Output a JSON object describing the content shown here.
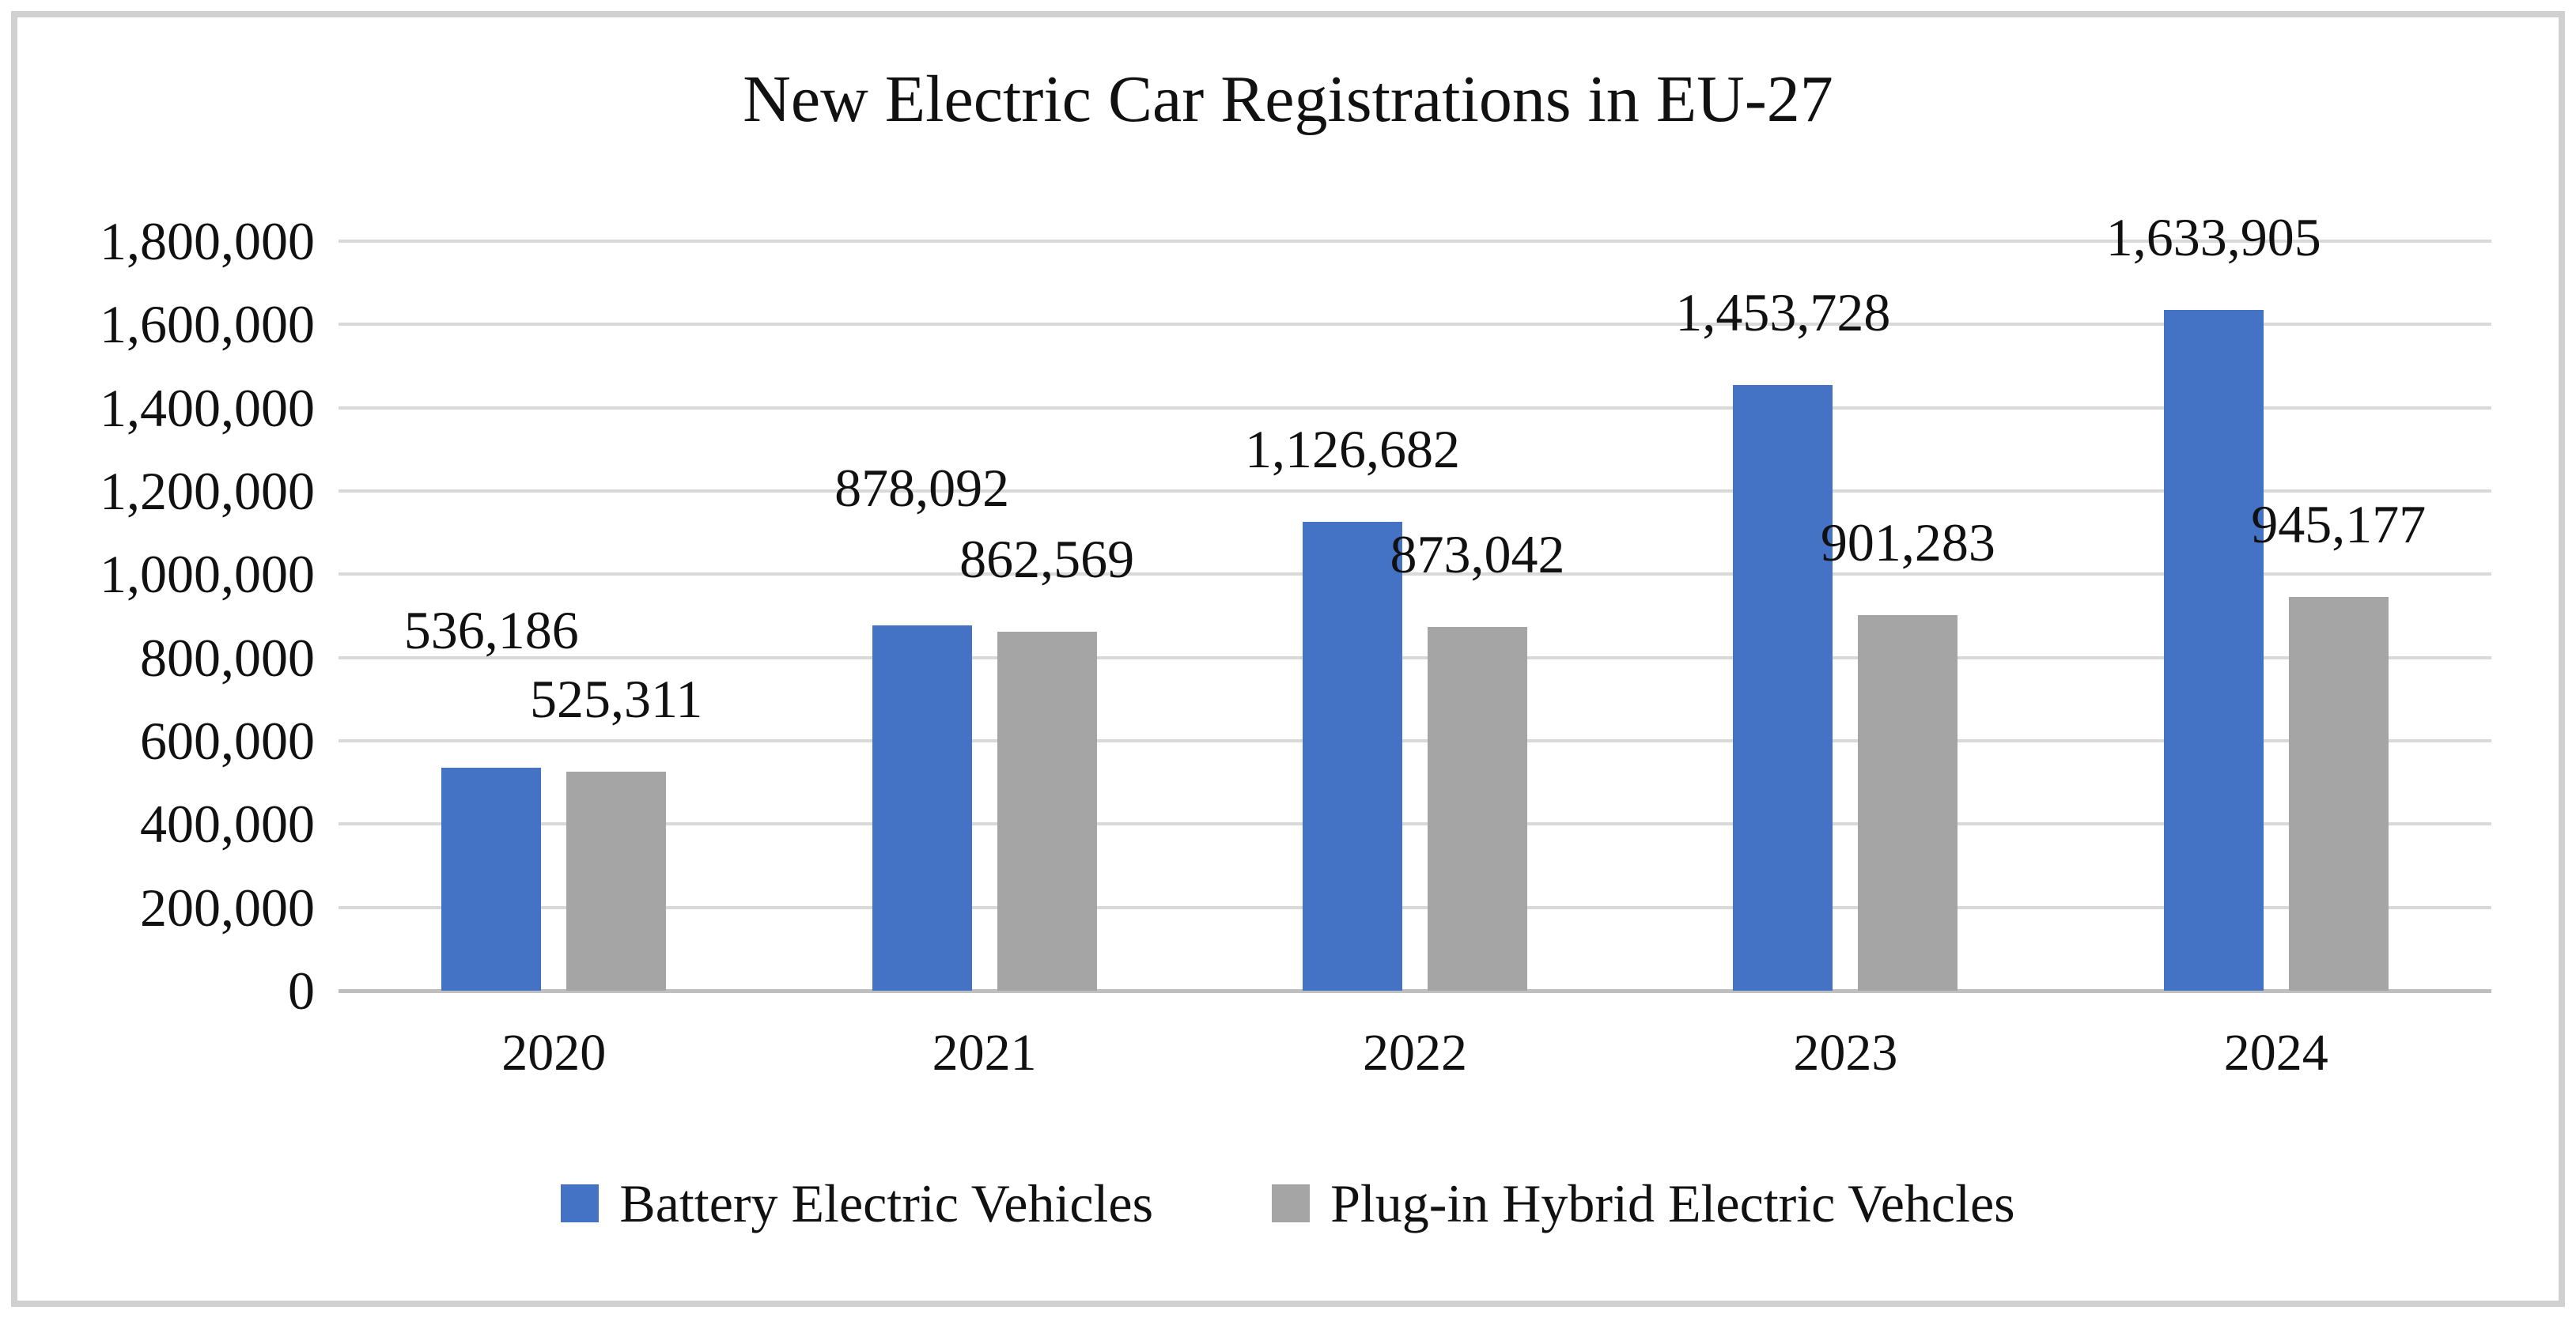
{
  "chart_data": {
    "type": "bar",
    "title": "New Electric Car Registrations in EU-27",
    "categories": [
      "2020",
      "2021",
      "2022",
      "2023",
      "2024"
    ],
    "series": [
      {
        "name": "Battery Electric Vehicles",
        "color": "#4472C4",
        "values": [
          536186,
          878092,
          1126682,
          1453728,
          1633905
        ],
        "value_labels": [
          "536,186",
          "878,092",
          "1,126,682",
          "1,453,728",
          "1,633,905"
        ]
      },
      {
        "name": "Plug-in Hybrid Electric Vehcles",
        "color": "#A5A5A5",
        "values": [
          525311,
          862569,
          873042,
          901283,
          945177
        ],
        "value_labels": [
          "525,311",
          "862,569",
          "873,042",
          "901,283",
          "945,177"
        ]
      }
    ],
    "xlabel": "",
    "ylabel": "",
    "ylim": [
      0,
      1800000
    ],
    "ytick_step": 200000,
    "ytick_labels": [
      "0",
      "200,000",
      "400,000",
      "600,000",
      "800,000",
      "1,000,000",
      "1,200,000",
      "1,400,000",
      "1,600,000",
      "1,800,000"
    ],
    "grid": true,
    "legend_position": "bottom",
    "colors": {
      "gridline": "#D9D9D9",
      "axis_line": "#BFBFBF",
      "frame_border": "#D0D0D0",
      "text": "#111111",
      "background": "#FFFFFF"
    }
  }
}
